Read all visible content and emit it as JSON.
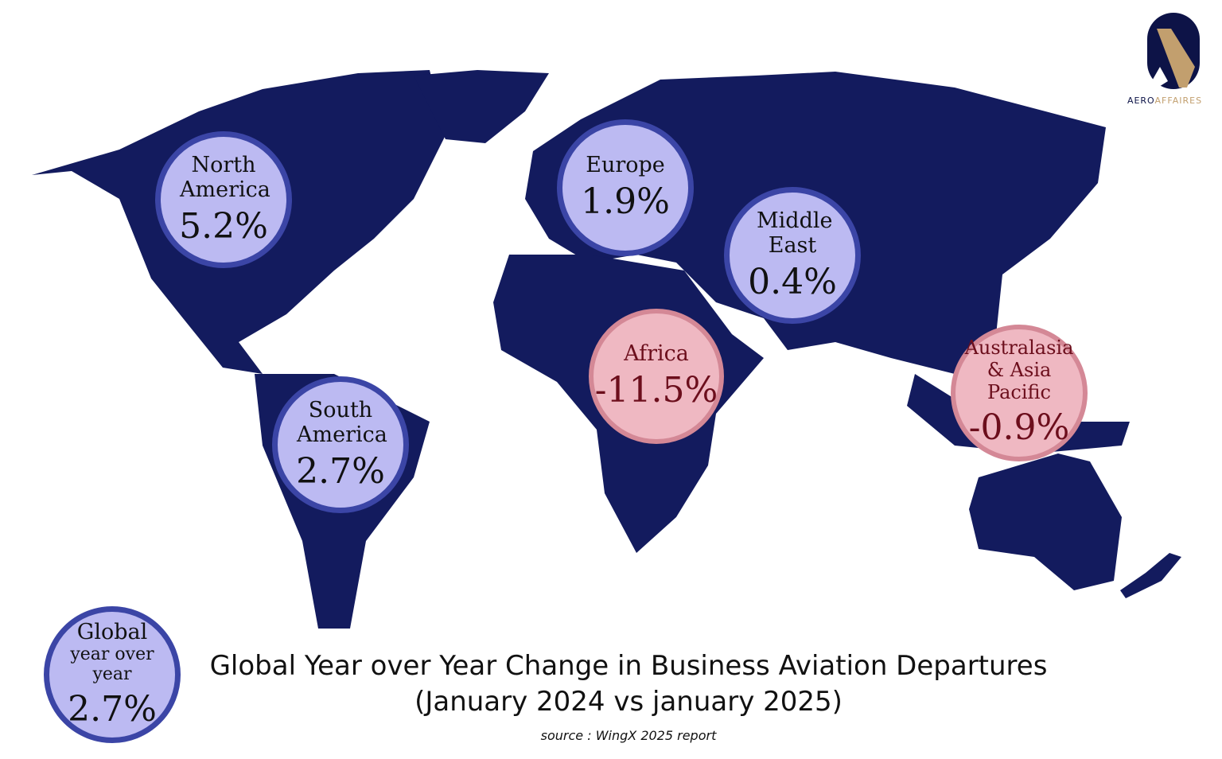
{
  "colors": {
    "land": "#131b5e",
    "positive_fill": "#bcbaf2",
    "positive_border": "#3b45a6",
    "negative_fill": "#efb8c2",
    "negative_border": "#d48896",
    "negative_text": "#6c0e1c",
    "logo_gold": "#c29f6e"
  },
  "logo": {
    "part1": "AERO",
    "part2": "AFFAIRES"
  },
  "regions": [
    {
      "label": "North America",
      "value": "5.2%"
    },
    {
      "label": "Europe",
      "value": "1.9%"
    },
    {
      "label": "Middle East",
      "value": "0.4%"
    },
    {
      "label": "Africa",
      "value": "-11.5%"
    },
    {
      "label": "South America",
      "value": "2.7%"
    },
    {
      "label": "Australasia & Asia Pacific",
      "value": "-0.9%"
    }
  ],
  "global": {
    "label1": "Global",
    "label2": "year over year",
    "value": "2.7%"
  },
  "title": {
    "line1": "Global Year over Year Change in Business Aviation Departures",
    "line2": "(January 2024 vs january 2025)"
  },
  "source": "source : WingX 2025 report"
}
